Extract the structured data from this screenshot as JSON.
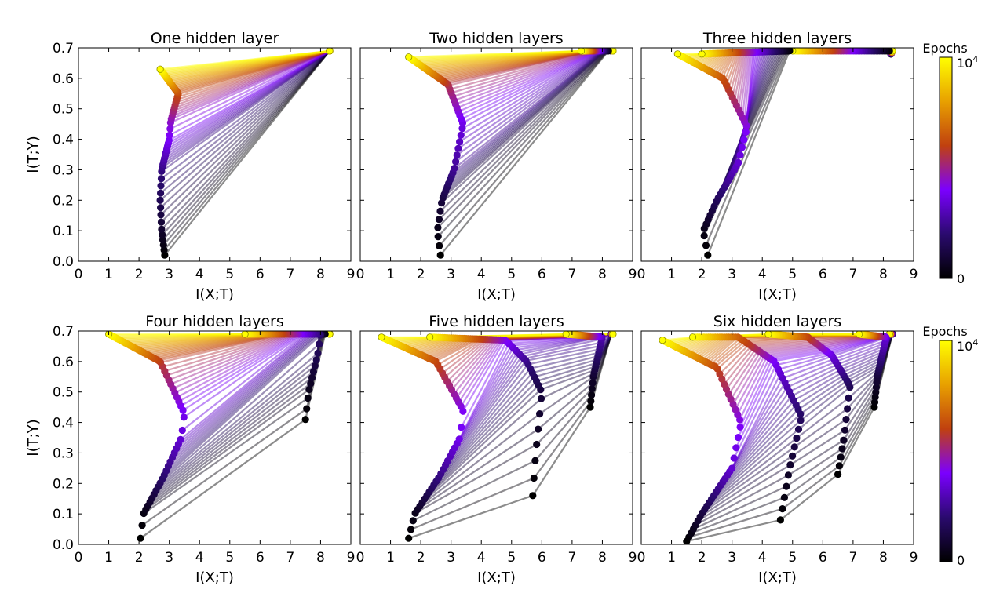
{
  "figure": {
    "colorbar": {
      "label": "Epochs",
      "tick_labels": [
        "10^4",
        "0"
      ],
      "colormap": [
        "#000000",
        "#2a0a6e",
        "#7b00ff",
        "#c0400f",
        "#e8a000",
        "#ffff00"
      ]
    }
  },
  "chart_data": [
    {
      "type": "line",
      "title": "One hidden layer",
      "xlabel": "I(X;T)",
      "ylabel": "I(T;Y)",
      "xlim": [
        0,
        9
      ],
      "ylim": [
        0,
        0.7
      ],
      "xticks": [
        "0",
        "1",
        "2",
        "3",
        "4",
        "5",
        "6",
        "7",
        "8",
        "9"
      ],
      "yticks": [
        "0.0",
        "0.1",
        "0.2",
        "0.3",
        "0.4",
        "0.5",
        "0.6",
        "0.7"
      ],
      "series": [
        {
          "layer": 1,
          "path": [
            [
              8.3,
              0.69
            ],
            [
              8.3,
              0.69
            ]
          ]
        },
        {
          "layer": 2,
          "path": [
            [
              2.85,
              0.02
            ],
            [
              2.75,
              0.1
            ],
            [
              2.7,
              0.2
            ],
            [
              2.75,
              0.3
            ],
            [
              3.0,
              0.4
            ],
            [
              3.05,
              0.46
            ],
            [
              3.3,
              0.55
            ],
            [
              2.7,
              0.63
            ]
          ]
        }
      ]
    },
    {
      "type": "line",
      "title": "Two hidden layers",
      "xlabel": "I(X;T)",
      "ylabel": "",
      "xlim": [
        0,
        9
      ],
      "ylim": [
        0,
        0.7
      ],
      "xticks": [
        "0",
        "1",
        "2",
        "3",
        "4",
        "5",
        "6",
        "7",
        "8",
        "9"
      ],
      "yticks": [],
      "series": [
        {
          "layer": 1,
          "path": [
            [
              8.3,
              0.69
            ],
            [
              8.35,
              0.69
            ]
          ]
        },
        {
          "layer": 2,
          "path": [
            [
              8.2,
              0.69
            ],
            [
              7.3,
              0.69
            ]
          ]
        },
        {
          "layer": 3,
          "path": [
            [
              2.65,
              0.02
            ],
            [
              2.55,
              0.1
            ],
            [
              2.7,
              0.2
            ],
            [
              3.1,
              0.3
            ],
            [
              3.4,
              0.45
            ],
            [
              2.9,
              0.58
            ],
            [
              1.6,
              0.67
            ]
          ]
        }
      ]
    },
    {
      "type": "line",
      "title": "Three hidden layers",
      "xlabel": "I(X;T)",
      "ylabel": "",
      "xlim": [
        0,
        9
      ],
      "ylim": [
        0,
        0.7
      ],
      "xticks": [
        "0",
        "1",
        "2",
        "3",
        "4",
        "5",
        "6",
        "7",
        "8",
        "9"
      ],
      "yticks": [],
      "series": [
        {
          "layer": 1,
          "path": [
            [
              8.25,
              0.68
            ],
            [
              8.3,
              0.69
            ]
          ]
        },
        {
          "layer": 2,
          "path": [
            [
              8.2,
              0.69
            ],
            [
              5.0,
              0.69
            ]
          ]
        },
        {
          "layer": 3,
          "path": [
            [
              4.9,
              0.69
            ],
            [
              2.0,
              0.68
            ]
          ]
        },
        {
          "layer": 4,
          "path": [
            [
              2.2,
              0.02
            ],
            [
              2.05,
              0.1
            ],
            [
              2.5,
              0.2
            ],
            [
              3.2,
              0.32
            ],
            [
              3.5,
              0.44
            ],
            [
              2.7,
              0.6
            ],
            [
              1.2,
              0.68
            ]
          ]
        }
      ]
    },
    {
      "type": "line",
      "title": "Four hidden layers",
      "xlabel": "I(X;T)",
      "ylabel": "I(T;Y)",
      "xlim": [
        0,
        9
      ],
      "ylim": [
        0,
        0.7
      ],
      "xticks": [
        "0",
        "1",
        "2",
        "3",
        "4",
        "5",
        "6",
        "7",
        "8",
        "9"
      ],
      "yticks": [
        "0.0",
        "0.1",
        "0.2",
        "0.3",
        "0.4",
        "0.5",
        "0.6",
        "0.7"
      ],
      "series": [
        {
          "layer": 1,
          "path": [
            [
              8.3,
              0.69
            ],
            [
              8.3,
              0.69
            ]
          ]
        },
        {
          "layer": 2,
          "path": [
            [
              8.15,
              0.69
            ],
            [
              6.8,
              0.69
            ]
          ]
        },
        {
          "layer": 3,
          "path": [
            [
              7.5,
              0.41
            ],
            [
              7.6,
              0.5
            ],
            [
              7.9,
              0.62
            ],
            [
              8.0,
              0.69
            ],
            [
              5.5,
              0.69
            ]
          ]
        },
        {
          "layer": 4,
          "path": [
            [
              2.05,
              0.02
            ],
            [
              2.15,
              0.1
            ],
            [
              2.8,
              0.22
            ],
            [
              3.4,
              0.35
            ],
            [
              3.5,
              0.43
            ],
            [
              2.7,
              0.6
            ],
            [
              1.0,
              0.69
            ]
          ]
        }
      ]
    },
    {
      "type": "line",
      "title": "Five hidden layers",
      "xlabel": "I(X;T)",
      "ylabel": "",
      "xlim": [
        0,
        9
      ],
      "ylim": [
        0,
        0.7
      ],
      "xticks": [
        "0",
        "1",
        "2",
        "3",
        "4",
        "5",
        "6",
        "7",
        "8",
        "9"
      ],
      "yticks": [],
      "series": [
        {
          "layer": 1,
          "path": [
            [
              8.3,
              0.69
            ],
            [
              8.35,
              0.69
            ]
          ]
        },
        {
          "layer": 2,
          "path": [
            [
              7.6,
              0.45
            ],
            [
              7.7,
              0.55
            ],
            [
              8.0,
              0.68
            ],
            [
              6.8,
              0.69
            ]
          ]
        },
        {
          "layer": 3,
          "path": [
            [
              5.7,
              0.16
            ],
            [
              5.8,
              0.3
            ],
            [
              6.0,
              0.5
            ],
            [
              5.5,
              0.6
            ],
            [
              4.8,
              0.67
            ],
            [
              2.3,
              0.68
            ]
          ]
        },
        {
          "layer": 4,
          "path": [
            [
              1.6,
              0.02
            ],
            [
              1.8,
              0.1
            ],
            [
              2.6,
              0.22
            ],
            [
              3.3,
              0.35
            ],
            [
              3.4,
              0.44
            ],
            [
              2.5,
              0.6
            ],
            [
              0.7,
              0.68
            ]
          ]
        }
      ]
    },
    {
      "type": "line",
      "title": "Six hidden layers",
      "xlabel": "I(X;T)",
      "ylabel": "",
      "xlim": [
        0,
        9
      ],
      "ylim": [
        0,
        0.7
      ],
      "xticks": [
        "0",
        "1",
        "2",
        "3",
        "4",
        "5",
        "6",
        "7",
        "8",
        "9"
      ],
      "yticks": [],
      "series": [
        {
          "layer": 1,
          "path": [
            [
              8.3,
              0.69
            ],
            [
              8.2,
              0.69
            ]
          ]
        },
        {
          "layer": 2,
          "path": [
            [
              7.7,
              0.45
            ],
            [
              7.8,
              0.55
            ],
            [
              8.1,
              0.68
            ],
            [
              7.2,
              0.69
            ]
          ]
        },
        {
          "layer": 3,
          "path": [
            [
              6.5,
              0.23
            ],
            [
              6.7,
              0.35
            ],
            [
              6.9,
              0.52
            ],
            [
              6.3,
              0.62
            ],
            [
              5.5,
              0.68
            ],
            [
              4.2,
              0.69
            ]
          ]
        },
        {
          "layer": 4,
          "path": [
            [
              4.6,
              0.08
            ],
            [
              4.9,
              0.25
            ],
            [
              5.3,
              0.42
            ],
            [
              4.4,
              0.6
            ],
            [
              3.2,
              0.68
            ],
            [
              1.7,
              0.68
            ]
          ]
        },
        {
          "layer": 5,
          "path": [
            [
              1.5,
              0.01
            ],
            [
              2.0,
              0.1
            ],
            [
              3.0,
              0.25
            ],
            [
              3.3,
              0.4
            ],
            [
              2.5,
              0.58
            ],
            [
              0.7,
              0.67
            ]
          ]
        }
      ]
    }
  ]
}
